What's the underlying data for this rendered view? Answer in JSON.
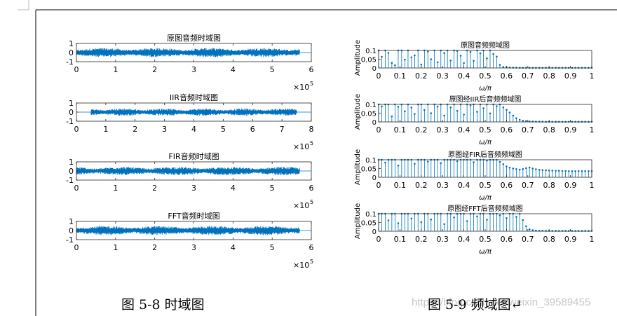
{
  "captions": {
    "left": "图 5-8 时域图",
    "right": "图 5-9 频域图↵",
    "watermark": "https://blog.csdn.net/weixin_39589455"
  },
  "colors": {
    "signal": "#0072BD",
    "axis": "#262626",
    "text": "#000000",
    "border": "#000000"
  },
  "chart_data": [
    {
      "type": "line",
      "title": "原图音频时域图",
      "xlim": [
        0,
        6
      ],
      "xticks": [
        "0",
        "1",
        "2",
        "3",
        "4",
        "5",
        "6"
      ],
      "x_exponent_label": "×10",
      "x_exponent": "5",
      "ylim": [
        -1,
        1
      ],
      "yticks": [
        "1",
        "0",
        "-1"
      ],
      "series": [
        {
          "signal_extent_x": [
            0,
            5.7
          ],
          "amplitude": 0.5
        }
      ]
    },
    {
      "type": "line",
      "title": "IIR音频时域图",
      "xlim": [
        0,
        8
      ],
      "xticks": [
        "0",
        "1",
        "2",
        "3",
        "4",
        "5",
        "6",
        "7",
        "8"
      ],
      "x_exponent_label": "×10",
      "x_exponent": "5",
      "ylim": [
        -1,
        1
      ],
      "yticks": [
        "1",
        "0",
        "-1"
      ],
      "series": [
        {
          "signal_extent_x": [
            0.5,
            7.5
          ],
          "amplitude": 0.4
        }
      ]
    },
    {
      "type": "line",
      "title": "FIR音频时域图",
      "xlim": [
        0,
        6
      ],
      "xticks": [
        "0",
        "1",
        "2",
        "3",
        "4",
        "5",
        "6"
      ],
      "x_exponent_label": "×10",
      "x_exponent": "5",
      "ylim": [
        -1,
        1
      ],
      "yticks": [
        "1",
        "0",
        "-1"
      ],
      "series": [
        {
          "signal_extent_x": [
            0,
            5.7
          ],
          "amplitude": 0.45
        }
      ]
    },
    {
      "type": "line",
      "title": "FFT音频时域图",
      "xlim": [
        0,
        6
      ],
      "xticks": [
        "0",
        "1",
        "2",
        "3",
        "4",
        "5",
        "6"
      ],
      "x_exponent_label": "×10",
      "x_exponent": "5",
      "ylim": [
        -1,
        1
      ],
      "yticks": [
        "1",
        "0",
        "-1"
      ],
      "series": [
        {
          "signal_extent_x": [
            0,
            5.7
          ],
          "amplitude": 0.5
        }
      ]
    },
    {
      "type": "stem",
      "title": "原图音频频域图",
      "ylabel": "Amplitude",
      "xlabel": "ω/π",
      "xlim": [
        0,
        1
      ],
      "ylim": [
        0,
        0.1
      ],
      "xticks": [
        "0",
        "0.1",
        "0.2",
        "0.3",
        "0.4",
        "0.5",
        "0.6",
        "0.7",
        "0.8",
        "0.9",
        "1"
      ],
      "yticks": [
        "0.1",
        "0.05",
        "0"
      ],
      "points": [
        [
          0.0,
          0.1
        ],
        [
          0.015,
          0.064
        ],
        [
          0.031,
          0.1
        ],
        [
          0.046,
          0.086
        ],
        [
          0.062,
          0.029
        ],
        [
          0.077,
          0.015
        ],
        [
          0.092,
          0.1
        ],
        [
          0.108,
          0.1
        ],
        [
          0.123,
          0.048
        ],
        [
          0.138,
          0.1
        ],
        [
          0.154,
          0.061
        ],
        [
          0.169,
          0.072
        ],
        [
          0.185,
          0.1
        ],
        [
          0.2,
          0.02
        ],
        [
          0.215,
          0.1
        ],
        [
          0.231,
          0.094
        ],
        [
          0.246,
          0.05
        ],
        [
          0.262,
          0.1
        ],
        [
          0.277,
          0.033
        ],
        [
          0.292,
          0.1
        ],
        [
          0.308,
          0.085
        ],
        [
          0.323,
          0.1
        ],
        [
          0.338,
          0.043
        ],
        [
          0.354,
          0.1
        ],
        [
          0.369,
          0.097
        ],
        [
          0.385,
          0.07
        ],
        [
          0.4,
          0.028
        ],
        [
          0.415,
          0.1
        ],
        [
          0.431,
          0.092
        ],
        [
          0.446,
          0.041
        ],
        [
          0.462,
          0.1
        ],
        [
          0.477,
          0.084
        ],
        [
          0.492,
          0.1
        ],
        [
          0.508,
          0.055
        ],
        [
          0.523,
          0.1
        ],
        [
          0.538,
          0.08
        ],
        [
          0.554,
          0.065
        ],
        [
          0.569,
          0.018
        ],
        [
          0.585,
          0.006
        ],
        [
          0.6,
          0.004
        ],
        [
          0.615,
          0.003
        ],
        [
          0.631,
          0.002
        ],
        [
          0.646,
          0.002
        ],
        [
          0.662,
          0.001
        ],
        [
          0.677,
          0.001
        ],
        [
          0.692,
          0.001
        ],
        [
          0.708,
          0.001
        ],
        [
          0.723,
          0.001
        ],
        [
          0.738,
          0.001
        ],
        [
          0.754,
          0.001
        ],
        [
          0.769,
          0.001
        ],
        [
          0.785,
          0.001
        ],
        [
          0.8,
          0.001
        ],
        [
          0.815,
          0.001
        ],
        [
          0.831,
          0.001
        ],
        [
          0.846,
          0.001
        ],
        [
          0.862,
          0.001
        ],
        [
          0.877,
          0.001
        ],
        [
          0.892,
          0.001
        ],
        [
          0.908,
          0.001
        ],
        [
          0.923,
          0.001
        ],
        [
          0.938,
          0.001
        ],
        [
          0.954,
          0.001
        ],
        [
          0.969,
          0.001
        ],
        [
          0.985,
          0.001
        ],
        [
          1.0,
          0.001
        ]
      ]
    },
    {
      "type": "stem",
      "title": "原图经IIR后音频频域图",
      "ylabel": "Amplitude",
      "xlabel": "ω/π",
      "xlim": [
        0,
        1
      ],
      "ylim": [
        0,
        0.1
      ],
      "xticks": [
        "0",
        "0.1",
        "0.2",
        "0.3",
        "0.4",
        "0.5",
        "0.6",
        "0.7",
        "0.8",
        "0.9",
        "1"
      ],
      "yticks": [
        "0.1",
        "0.05",
        "0"
      ],
      "points": [
        [
          0.0,
          0.1
        ],
        [
          0.015,
          0.089
        ],
        [
          0.031,
          0.1
        ],
        [
          0.046,
          0.1
        ],
        [
          0.062,
          0.032
        ],
        [
          0.077,
          0.1
        ],
        [
          0.092,
          0.087
        ],
        [
          0.108,
          0.1
        ],
        [
          0.123,
          0.061
        ],
        [
          0.138,
          0.1
        ],
        [
          0.154,
          0.082
        ],
        [
          0.169,
          0.046
        ],
        [
          0.185,
          0.1
        ],
        [
          0.2,
          0.1
        ],
        [
          0.215,
          0.068
        ],
        [
          0.231,
          0.1
        ],
        [
          0.246,
          0.05
        ],
        [
          0.262,
          0.1
        ],
        [
          0.277,
          0.088
        ],
        [
          0.292,
          0.1
        ],
        [
          0.308,
          0.036
        ],
        [
          0.323,
          0.1
        ],
        [
          0.338,
          0.083
        ],
        [
          0.354,
          0.1
        ],
        [
          0.369,
          0.063
        ],
        [
          0.385,
          0.1
        ],
        [
          0.4,
          0.042
        ],
        [
          0.415,
          0.1
        ],
        [
          0.431,
          0.095
        ],
        [
          0.446,
          0.1
        ],
        [
          0.462,
          0.058
        ],
        [
          0.477,
          0.1
        ],
        [
          0.492,
          0.078
        ],
        [
          0.508,
          0.1
        ],
        [
          0.523,
          0.049
        ],
        [
          0.538,
          0.1
        ],
        [
          0.554,
          0.09
        ],
        [
          0.569,
          0.1
        ],
        [
          0.585,
          0.083
        ],
        [
          0.6,
          0.069
        ],
        [
          0.615,
          0.054
        ],
        [
          0.631,
          0.036
        ],
        [
          0.646,
          0.021
        ],
        [
          0.662,
          0.012
        ],
        [
          0.677,
          0.007
        ],
        [
          0.692,
          0.005
        ],
        [
          0.708,
          0.003
        ],
        [
          0.723,
          0.003
        ],
        [
          0.738,
          0.002
        ],
        [
          0.754,
          0.002
        ],
        [
          0.769,
          0.002
        ],
        [
          0.785,
          0.001
        ],
        [
          0.8,
          0.001
        ],
        [
          0.815,
          0.001
        ],
        [
          0.831,
          0.001
        ],
        [
          0.846,
          0.001
        ],
        [
          0.862,
          0.001
        ],
        [
          0.877,
          0.001
        ],
        [
          0.892,
          0.001
        ],
        [
          0.908,
          0.001
        ],
        [
          0.923,
          0.001
        ],
        [
          0.938,
          0.001
        ],
        [
          0.954,
          0.001
        ],
        [
          0.969,
          0.001
        ],
        [
          0.985,
          0.001
        ],
        [
          1.0,
          0.001
        ]
      ]
    },
    {
      "type": "stem",
      "title": "原图经FIR后音频频域图",
      "ylabel": "Amplitude",
      "xlabel": "ω/π",
      "xlim": [
        0,
        1
      ],
      "ylim": [
        0,
        0.1
      ],
      "xticks": [
        "0",
        "0.1",
        "0.2",
        "0.3",
        "0.4",
        "0.5",
        "0.6",
        "0.7",
        "0.8",
        "0.9",
        "1"
      ],
      "yticks": [
        "0.1",
        "0.05",
        "0"
      ],
      "points": [
        [
          0.0,
          0.1
        ],
        [
          0.015,
          0.1
        ],
        [
          0.031,
          0.084
        ],
        [
          0.046,
          0.1
        ],
        [
          0.062,
          0.1
        ],
        [
          0.077,
          0.1
        ],
        [
          0.092,
          0.067
        ],
        [
          0.108,
          0.1
        ],
        [
          0.123,
          0.1
        ],
        [
          0.138,
          0.1
        ],
        [
          0.154,
          0.1
        ],
        [
          0.169,
          0.077
        ],
        [
          0.185,
          0.1
        ],
        [
          0.2,
          0.1
        ],
        [
          0.215,
          0.1
        ],
        [
          0.231,
          0.09
        ],
        [
          0.246,
          0.1
        ],
        [
          0.262,
          0.1
        ],
        [
          0.277,
          0.1
        ],
        [
          0.292,
          0.081
        ],
        [
          0.308,
          0.1
        ],
        [
          0.323,
          0.1
        ],
        [
          0.338,
          0.1
        ],
        [
          0.354,
          0.1
        ],
        [
          0.369,
          0.092
        ],
        [
          0.385,
          0.1
        ],
        [
          0.4,
          0.1
        ],
        [
          0.415,
          0.1
        ],
        [
          0.431,
          0.1
        ],
        [
          0.446,
          0.086
        ],
        [
          0.462,
          0.1
        ],
        [
          0.477,
          0.1
        ],
        [
          0.492,
          0.1
        ],
        [
          0.508,
          0.095
        ],
        [
          0.523,
          0.1
        ],
        [
          0.538,
          0.1
        ],
        [
          0.554,
          0.1
        ],
        [
          0.569,
          0.088
        ],
        [
          0.585,
          0.075
        ],
        [
          0.6,
          0.062
        ],
        [
          0.615,
          0.055
        ],
        [
          0.631,
          0.05
        ],
        [
          0.646,
          0.047
        ],
        [
          0.662,
          0.044
        ],
        [
          0.677,
          0.047
        ],
        [
          0.692,
          0.052
        ],
        [
          0.708,
          0.056
        ],
        [
          0.723,
          0.05
        ],
        [
          0.738,
          0.046
        ],
        [
          0.754,
          0.043
        ],
        [
          0.769,
          0.041
        ],
        [
          0.785,
          0.04
        ],
        [
          0.8,
          0.039
        ],
        [
          0.815,
          0.038
        ],
        [
          0.831,
          0.037
        ],
        [
          0.846,
          0.037
        ],
        [
          0.862,
          0.036
        ],
        [
          0.877,
          0.036
        ],
        [
          0.892,
          0.035
        ],
        [
          0.908,
          0.035
        ],
        [
          0.923,
          0.035
        ],
        [
          0.938,
          0.035
        ],
        [
          0.954,
          0.035
        ],
        [
          0.969,
          0.035
        ],
        [
          0.985,
          0.035
        ],
        [
          1.0,
          0.035
        ]
      ]
    },
    {
      "type": "stem",
      "title": "原图经FFT后音频频域图",
      "ylabel": "Amplitude",
      "xlabel": "ω/π",
      "xlim": [
        0,
        1
      ],
      "ylim": [
        0,
        0.1
      ],
      "xticks": [
        "0",
        "0.1",
        "0.2",
        "0.3",
        "0.4",
        "0.5",
        "0.6",
        "0.7",
        "0.8",
        "0.9",
        "1"
      ],
      "yticks": [
        "0.1",
        "0.05",
        "0"
      ],
      "points": [
        [
          0.0,
          0.1
        ],
        [
          0.015,
          0.1
        ],
        [
          0.031,
          0.1
        ],
        [
          0.046,
          0.062
        ],
        [
          0.062,
          0.1
        ],
        [
          0.077,
          0.1
        ],
        [
          0.092,
          0.046
        ],
        [
          0.108,
          0.1
        ],
        [
          0.123,
          0.1
        ],
        [
          0.138,
          0.1
        ],
        [
          0.154,
          0.073
        ],
        [
          0.169,
          0.1
        ],
        [
          0.185,
          0.1
        ],
        [
          0.2,
          0.052
        ],
        [
          0.215,
          0.1
        ],
        [
          0.231,
          0.1
        ],
        [
          0.246,
          0.067
        ],
        [
          0.262,
          0.1
        ],
        [
          0.277,
          0.1
        ],
        [
          0.292,
          0.1
        ],
        [
          0.308,
          0.041
        ],
        [
          0.323,
          0.1
        ],
        [
          0.338,
          0.1
        ],
        [
          0.354,
          0.079
        ],
        [
          0.369,
          0.1
        ],
        [
          0.385,
          0.1
        ],
        [
          0.4,
          0.1
        ],
        [
          0.415,
          0.058
        ],
        [
          0.431,
          0.1
        ],
        [
          0.446,
          0.1
        ],
        [
          0.462,
          0.085
        ],
        [
          0.477,
          0.1
        ],
        [
          0.492,
          0.1
        ],
        [
          0.508,
          0.066
        ],
        [
          0.523,
          0.1
        ],
        [
          0.538,
          0.1
        ],
        [
          0.554,
          0.1
        ],
        [
          0.569,
          0.091
        ],
        [
          0.585,
          0.1
        ],
        [
          0.6,
          0.075
        ],
        [
          0.615,
          0.1
        ],
        [
          0.631,
          0.1
        ],
        [
          0.646,
          0.082
        ],
        [
          0.662,
          0.1
        ],
        [
          0.677,
          0.064
        ],
        [
          0.692,
          0.029
        ],
        [
          0.708,
          0.011
        ],
        [
          0.723,
          0.006
        ],
        [
          0.738,
          0.004
        ],
        [
          0.754,
          0.003
        ],
        [
          0.769,
          0.003
        ],
        [
          0.785,
          0.002
        ],
        [
          0.8,
          0.002
        ],
        [
          0.815,
          0.002
        ],
        [
          0.831,
          0.002
        ],
        [
          0.846,
          0.002
        ],
        [
          0.862,
          0.002
        ],
        [
          0.877,
          0.002
        ],
        [
          0.892,
          0.002
        ],
        [
          0.908,
          0.002
        ],
        [
          0.923,
          0.002
        ],
        [
          0.938,
          0.002
        ],
        [
          0.954,
          0.002
        ],
        [
          0.969,
          0.002
        ],
        [
          0.985,
          0.002
        ],
        [
          1.0,
          0.002
        ]
      ]
    }
  ]
}
